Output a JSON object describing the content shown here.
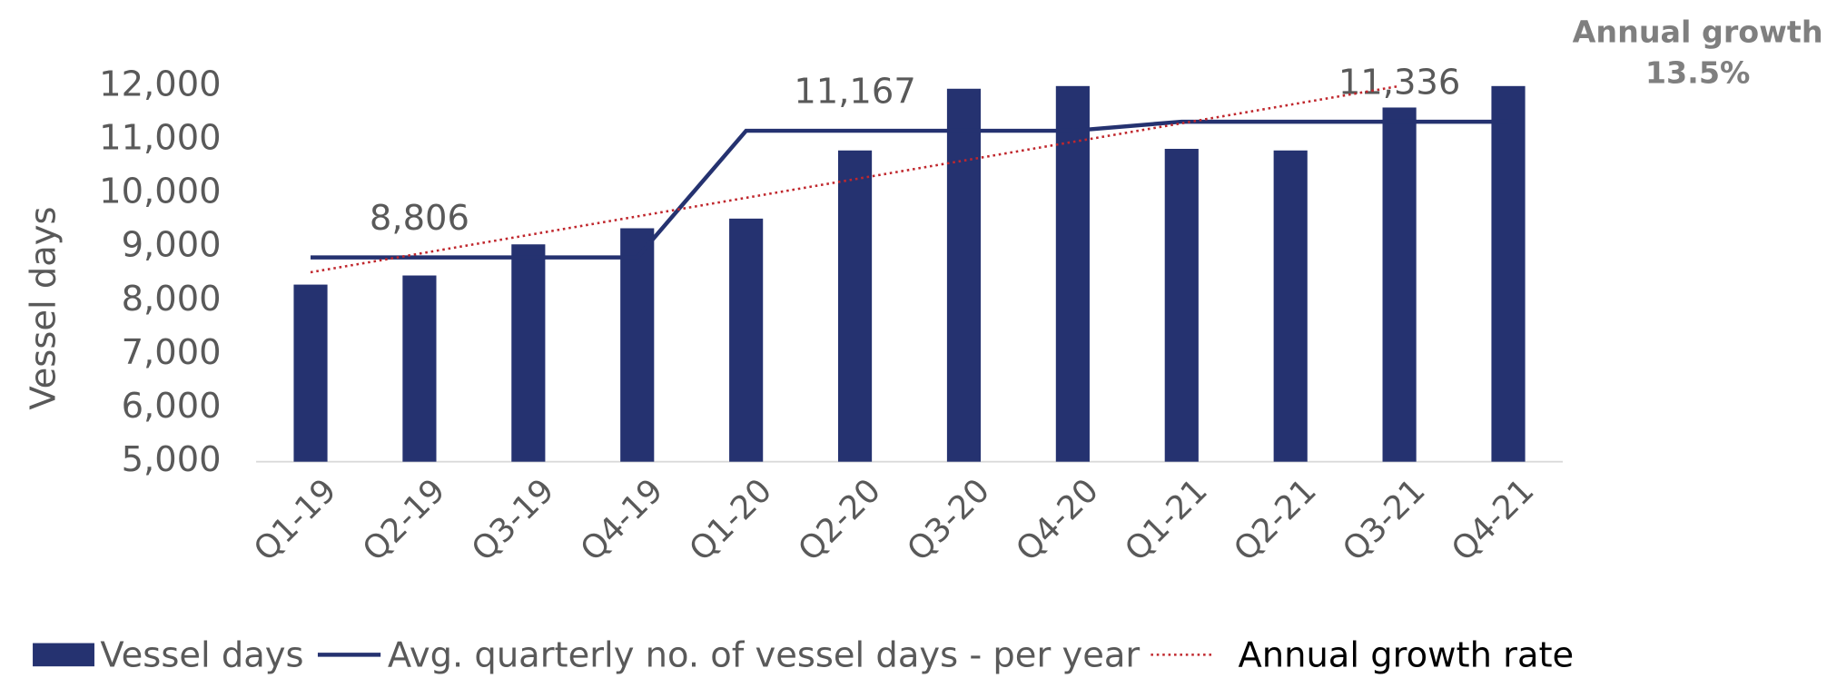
{
  "chart_data": {
    "type": "bar",
    "categories": [
      "Q1-19",
      "Q2-19",
      "Q3-19",
      "Q4-19",
      "Q1-20",
      "Q2-20",
      "Q3-20",
      "Q4-20",
      "Q1-21",
      "Q2-21",
      "Q3-21",
      "Q4-21"
    ],
    "y_label": "Vessel days",
    "ylim": [
      5000,
      12000
    ],
    "yticks": [
      {
        "value": 5000,
        "label": "5,000"
      },
      {
        "value": 6000,
        "label": "6,000"
      },
      {
        "value": 7000,
        "label": "7,000"
      },
      {
        "value": 8000,
        "label": "8,000"
      },
      {
        "value": 9000,
        "label": "9,000"
      },
      {
        "value": 10000,
        "label": "10,000"
      },
      {
        "value": 11000,
        "label": "11,000"
      },
      {
        "value": 12000,
        "label": "12,000"
      }
    ],
    "annotation": [
      "Annual growth",
      "13.5%"
    ],
    "series": [
      {
        "name": "Vessel days",
        "type": "bar",
        "color": "#253270",
        "values": [
          8300,
          8470,
          9050,
          9350,
          9530,
          10800,
          11950,
          12000,
          10830,
          10800,
          11600,
          12000
        ]
      },
      {
        "name": "Avg. quarterly no. of vessel days - per year",
        "type": "line",
        "color": "#253270",
        "values": [
          8806,
          8806,
          8806,
          8806,
          11167,
          11167,
          11167,
          11167,
          11336,
          11336,
          11336,
          11336
        ],
        "value_labels": [
          null,
          "8,806",
          null,
          null,
          null,
          "11,167",
          null,
          null,
          null,
          null,
          "11,336",
          null
        ]
      },
      {
        "name": "Annual growth rate",
        "type": "line",
        "style": "dotted",
        "color": "#c0272d",
        "values": [
          8530,
          8877,
          9224,
          9571,
          9918,
          10265,
          10612,
          10959,
          11306,
          11653,
          12000,
          null
        ]
      }
    ]
  }
}
